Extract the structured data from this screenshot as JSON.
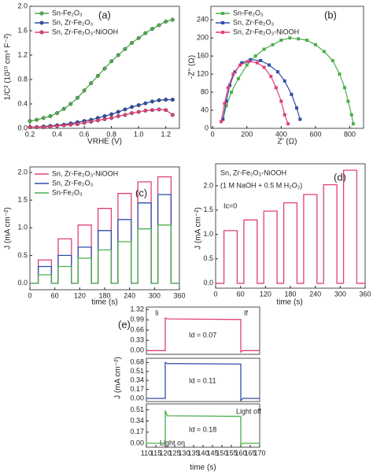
{
  "chart_data": [
    {
      "type": "line",
      "panel_label": "(a)",
      "xlabel": "VRHE (V)",
      "ylabel": "1/C² (10¹⁰ cm⁴ F⁻²)",
      "markers": "circle",
      "legend": "upper left",
      "xlim": [
        0.2,
        1.3
      ],
      "ylim": [
        0,
        2.0
      ],
      "xticks": [
        0.2,
        0.4,
        0.6,
        0.8,
        {
          "value": 1.0,
          "label": "1.0"
        },
        1.2
      ],
      "yticks": [
        {
          "value": 0,
          "label": "0.0"
        },
        0.4,
        0.8,
        1.2,
        1.6,
        {
          "value": 2.0,
          "label": "2.0"
        }
      ],
      "x": [
        0.2,
        0.25,
        0.3,
        0.35,
        0.4,
        0.45,
        0.5,
        0.55,
        0.6,
        0.65,
        0.7,
        0.75,
        0.8,
        0.85,
        0.9,
        0.95,
        1.0,
        1.05,
        1.1,
        1.15,
        1.2,
        1.25
      ],
      "series": [
        {
          "name": "Sn-Fe₂O₃",
          "color": "#4cae4c",
          "values": [
            0.12,
            0.14,
            0.17,
            0.2,
            0.25,
            0.32,
            0.4,
            0.5,
            0.62,
            0.74,
            0.86,
            0.98,
            1.1,
            1.2,
            1.3,
            1.4,
            1.48,
            1.56,
            1.63,
            1.69,
            1.75,
            1.78
          ]
        },
        {
          "name": "Sn, Zr-Fe₂O₃",
          "color": "#2f4fa8",
          "values": [
            0.02,
            0.02,
            0.03,
            0.04,
            0.05,
            0.06,
            0.08,
            0.1,
            0.12,
            0.14,
            0.17,
            0.2,
            0.23,
            0.27,
            0.31,
            0.35,
            0.38,
            0.41,
            0.44,
            0.46,
            0.47,
            0.47
          ]
        },
        {
          "name": "Sn, Zr-Fe₂O₃-NiOOH",
          "color": "#e0407a",
          "values": [
            0.02,
            0.02,
            0.02,
            0.03,
            0.04,
            0.05,
            0.06,
            0.07,
            0.09,
            0.11,
            0.13,
            0.15,
            0.17,
            0.2,
            0.22,
            0.25,
            0.27,
            0.29,
            0.3,
            0.31,
            0.3,
            0.22
          ]
        }
      ]
    },
    {
      "type": "scatter",
      "panel_label": "(b)",
      "xlabel": "Z' (Ω)",
      "ylabel": "-Z'' (Ω)",
      "markers": "square",
      "legend": "upper left",
      "xlim": [
        -10,
        880
      ],
      "ylim": [
        0,
        270
      ],
      "xticks": [
        0,
        200,
        400,
        600,
        800
      ],
      "yticks": [
        0,
        40,
        80,
        120,
        160,
        200,
        240
      ],
      "series": [
        {
          "name": "Sn-Fe₂O₃",
          "color": "#4cae4c",
          "x": [
            60,
            80,
            110,
            150,
            200,
            250,
            300,
            350,
            400,
            450,
            500,
            550,
            600,
            650,
            700,
            740,
            770,
            790,
            810,
            820
          ],
          "values": [
            20,
            50,
            80,
            110,
            140,
            160,
            175,
            185,
            195,
            200,
            198,
            195,
            185,
            170,
            150,
            120,
            90,
            60,
            30,
            10
          ]
        },
        {
          "name": "Sn, Zr-Fe₂O₃",
          "color": "#2f4fa8",
          "x": [
            60,
            80,
            100,
            130,
            170,
            220,
            280,
            330,
            380,
            420,
            460,
            490,
            510
          ],
          "values": [
            20,
            60,
            95,
            125,
            145,
            152,
            150,
            140,
            125,
            105,
            75,
            45,
            20
          ]
        },
        {
          "name": "Sn, Zr-Fe₂O₃-NiOOH",
          "color": "#e0407a",
          "x": [
            50,
            70,
            90,
            120,
            160,
            210,
            260,
            300,
            340,
            370,
            400,
            420,
            440
          ],
          "values": [
            15,
            55,
            90,
            120,
            140,
            148,
            145,
            135,
            115,
            90,
            60,
            30,
            10
          ]
        }
      ]
    },
    {
      "type": "line",
      "panel_label": "(c)",
      "xlabel": "time (s)",
      "ylabel": "J (mA cm⁻²)",
      "legend": "upper left",
      "xlim": [
        0,
        360
      ],
      "ylim": [
        -0.12,
        2.1
      ],
      "xticks": [
        0,
        60,
        120,
        180,
        240,
        300,
        360
      ],
      "yticks": [
        {
          "value": 0,
          "label": "0.0"
        },
        0.5,
        {
          "value": 1.0,
          "label": "1.0"
        },
        1.5,
        {
          "value": 2.0,
          "label": "2.0"
        }
      ],
      "x": [
        0,
        20,
        20,
        52,
        52,
        68,
        68,
        100,
        100,
        116,
        116,
        148,
        148,
        164,
        164,
        196,
        196,
        212,
        212,
        244,
        244,
        260,
        260,
        292,
        292,
        308,
        308,
        340,
        340,
        360
      ],
      "series": [
        {
          "name": "Sn, Zr-Fe₂O₃-NiOOH",
          "color": "#e0407a",
          "values": [
            0,
            0,
            0.42,
            0.42,
            0,
            0,
            0.8,
            0.8,
            0,
            0,
            1.05,
            1.05,
            0,
            0,
            1.35,
            1.35,
            0,
            0,
            1.62,
            1.62,
            0,
            0,
            1.83,
            1.83,
            0,
            0,
            1.92,
            1.92,
            0,
            0
          ]
        },
        {
          "name": "Sn, Zr-Fe₂O₃",
          "color": "#2f4fa8",
          "values": [
            0,
            0,
            0.3,
            0.3,
            0,
            0,
            0.5,
            0.5,
            0,
            0,
            0.65,
            0.65,
            0,
            0,
            0.95,
            0.95,
            0,
            0,
            1.15,
            1.15,
            0,
            0,
            1.45,
            1.45,
            0,
            0,
            1.6,
            1.6,
            0,
            0
          ]
        },
        {
          "name": "Sn-Fe₂O₃",
          "color": "#4cae4c",
          "values": [
            0,
            0,
            0.15,
            0.15,
            0,
            0,
            0.3,
            0.3,
            0,
            0,
            0.45,
            0.45,
            0,
            0,
            0.6,
            0.6,
            0,
            0,
            0.75,
            0.75,
            0,
            0,
            0.98,
            0.98,
            0,
            0,
            1.05,
            1.05,
            0,
            0
          ]
        }
      ]
    },
    {
      "type": "line",
      "panel_label": "(d)",
      "xlabel": "time (s)",
      "ylabel": "J (mA cm⁻²)",
      "annotations": [
        "Sn, Zr-Fe₂O₃-NiOOH",
        "(1 M NaOH + 0.5 M H₂O₂)",
        "Ic=0"
      ],
      "xlim": [
        0,
        360
      ],
      "ylim": [
        -0.1,
        2.45
      ],
      "xticks": [
        0,
        60,
        120,
        180,
        240,
        300,
        360
      ],
      "yticks": [
        {
          "value": 0,
          "label": "0.0"
        },
        0.5,
        {
          "value": 1.0,
          "label": "1.0"
        },
        1.5,
        {
          "value": 2.0,
          "label": "2.0"
        }
      ],
      "x": [
        0,
        20,
        20,
        52,
        52,
        68,
        68,
        100,
        100,
        116,
        116,
        148,
        148,
        164,
        164,
        196,
        196,
        212,
        212,
        244,
        244,
        260,
        260,
        292,
        292,
        308,
        308,
        340,
        340,
        360
      ],
      "series": [
        {
          "color": "#e0407a",
          "values": [
            0,
            0,
            1.08,
            1.08,
            0,
            0,
            1.3,
            1.3,
            0,
            0,
            1.48,
            1.48,
            0,
            0,
            1.65,
            1.65,
            0,
            0,
            1.82,
            1.82,
            0,
            0,
            2.02,
            2.02,
            0,
            0,
            2.32,
            2.32,
            0,
            0
          ]
        }
      ]
    },
    {
      "type": "line",
      "panel_label": "(e)",
      "annotations": [
        "Ii",
        "If",
        "Id = 0.07"
      ],
      "xlim": [
        110,
        170
      ],
      "ylim": [
        -0.12,
        1.4
      ],
      "yticks": [
        {
          "value": 0,
          "label": "0.00"
        },
        0.33,
        0.66,
        0.99,
        1.32
      ],
      "x": [
        110,
        120,
        120,
        121,
        160,
        160,
        161,
        170
      ],
      "series": [
        {
          "color": "#e0407a",
          "values": [
            0,
            0,
            1.05,
            1.02,
            1.0,
            -0.05,
            0,
            0
          ]
        }
      ]
    },
    {
      "type": "line",
      "ylabel": "J (mA cm⁻²)",
      "annotations": [
        "Id = 0.11"
      ],
      "xlim": [
        110,
        170
      ],
      "ylim": [
        -0.06,
        0.76
      ],
      "yticks": [
        {
          "value": 0,
          "label": "0.00"
        },
        0.17,
        0.34,
        0.51,
        0.68
      ],
      "x": [
        110,
        120,
        120,
        121,
        160,
        160,
        161,
        170
      ],
      "series": [
        {
          "color": "#2f4fa8",
          "values": [
            0,
            0,
            0.68,
            0.66,
            0.65,
            -0.04,
            0,
            0
          ]
        }
      ]
    },
    {
      "type": "line",
      "xlabel": "time (s)",
      "annotations": [
        "Id = 0.18",
        "Light off",
        "Light on"
      ],
      "xlim": [
        110,
        170
      ],
      "ylim": [
        -0.06,
        0.6
      ],
      "xticks": [
        110,
        115,
        120,
        125,
        130,
        135,
        140,
        145,
        150,
        155,
        160,
        165,
        170
      ],
      "yticks": [
        {
          "value": 0,
          "label": "0.00"
        },
        0.17,
        0.34,
        0.51
      ],
      "x": [
        110,
        120,
        120,
        121,
        160,
        160,
        161,
        170
      ],
      "series": [
        {
          "color": "#4cae4c",
          "values": [
            0,
            0,
            0.5,
            0.42,
            0.41,
            -0.02,
            0,
            0
          ]
        }
      ]
    }
  ]
}
